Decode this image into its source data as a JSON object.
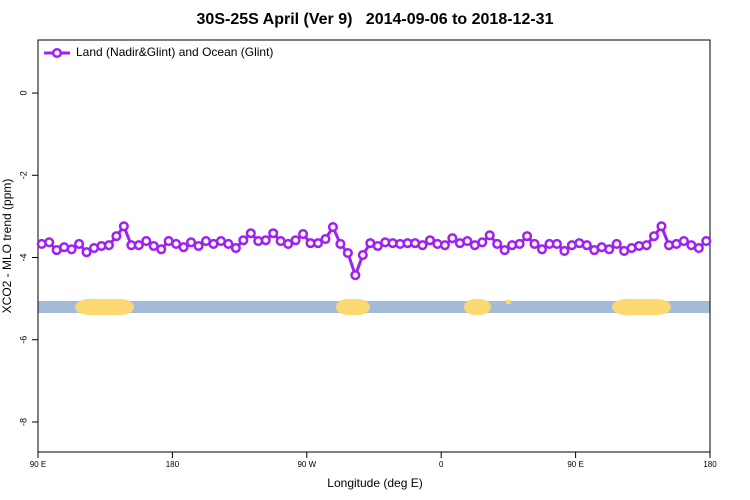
{
  "chart_data": {
    "type": "line",
    "title": "30S-25S April (Ver 9)   2014-09-06 to 2018-12-31",
    "x_label": "Longitude (deg E)",
    "y_label": "XCO2 - MLO trend (ppm)",
    "xlim": [
      90,
      540
    ],
    "ylim": [
      -8.73,
      1.29
    ],
    "xticks": [
      {
        "value": 90,
        "label": "90 E"
      },
      180,
      {
        "value": 270,
        "label": "90 W"
      },
      {
        "value": 360,
        "label": "0"
      },
      {
        "value": 450,
        "label": "90 E"
      },
      {
        "value": 540,
        "label": "180"
      }
    ],
    "yticks": [
      0,
      -2,
      -4,
      -6,
      -8
    ],
    "grid": false,
    "legend": "top-left",
    "x": [
      92.5,
      97.5,
      102.5,
      107.5,
      112.5,
      117.5,
      122.5,
      127.5,
      132.5,
      137.5,
      142.5,
      147.5,
      152.5,
      157.5,
      162.5,
      167.5,
      172.5,
      177.5,
      182.5,
      187.5,
      192.5,
      197.5,
      202.5,
      207.5,
      212.5,
      217.5,
      222.5,
      227.5,
      232.5,
      237.5,
      242.5,
      247.5,
      252.5,
      257.5,
      262.5,
      267.5,
      272.5,
      277.5,
      282.5,
      287.5,
      292.5,
      297.5,
      302.5,
      307.5,
      312.5,
      317.5,
      322.5,
      327.5,
      332.5,
      337.5,
      342.5,
      347.5,
      352.5,
      357.5,
      362.5,
      367.5,
      372.5,
      377.5,
      382.5,
      387.5,
      392.5,
      397.5,
      402.5,
      407.5,
      412.5,
      417.5,
      422.5,
      427.5,
      432.5,
      437.5,
      442.5,
      447.5,
      452.5,
      457.5,
      462.5,
      467.5,
      472.5,
      477.5,
      482.5,
      487.5,
      492.5,
      497.5,
      502.5,
      507.5,
      512.5,
      517.5,
      522.5,
      527.5,
      532.5,
      537.5
    ],
    "series": [
      {
        "name": "Land (Nadir&Glint) and Ocean (Glint)",
        "color": "#a020f0",
        "values": [
          -3.67,
          -3.63,
          -3.82,
          -3.75,
          -3.8,
          -3.67,
          -3.87,
          -3.77,
          -3.72,
          -3.7,
          -3.48,
          -3.24,
          -3.7,
          -3.7,
          -3.6,
          -3.72,
          -3.8,
          -3.6,
          -3.67,
          -3.75,
          -3.63,
          -3.72,
          -3.6,
          -3.67,
          -3.6,
          -3.67,
          -3.77,
          -3.58,
          -3.41,
          -3.6,
          -3.58,
          -3.41,
          -3.6,
          -3.67,
          -3.58,
          -3.43,
          -3.65,
          -3.65,
          -3.55,
          -3.26,
          -3.67,
          -3.89,
          -4.43,
          -3.94,
          -3.65,
          -3.72,
          -3.63,
          -3.65,
          -3.67,
          -3.65,
          -3.65,
          -3.7,
          -3.58,
          -3.67,
          -3.7,
          -3.53,
          -3.65,
          -3.6,
          -3.7,
          -3.63,
          -3.46,
          -3.67,
          -3.82,
          -3.7,
          -3.67,
          -3.48,
          -3.67,
          -3.8,
          -3.67,
          -3.67,
          -3.84,
          -3.7,
          -3.65,
          -3.7,
          -3.82,
          -3.75,
          -3.8,
          -3.67,
          -3.84,
          -3.77,
          -3.72,
          -3.7,
          -3.48,
          -3.24,
          -3.7,
          -3.67,
          -3.6,
          -3.7,
          -3.77,
          -3.6
        ]
      }
    ]
  }
}
